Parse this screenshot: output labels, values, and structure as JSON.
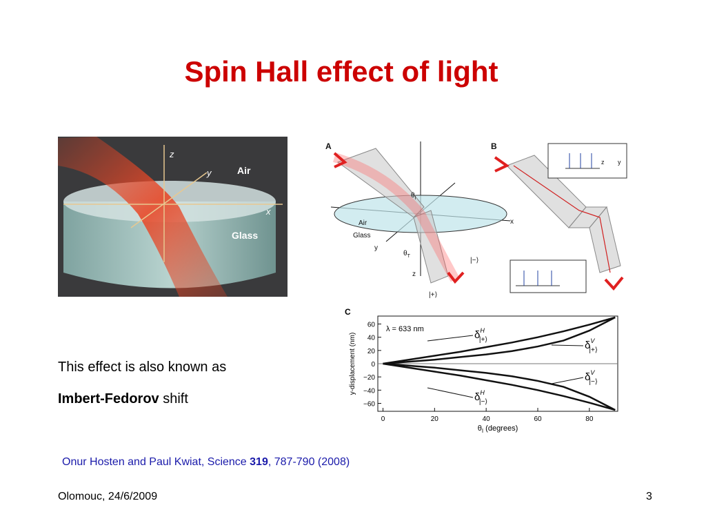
{
  "header": {
    "title": "Spin Hall effect of light"
  },
  "photo": {
    "labels": [
      "z",
      "y",
      "Air",
      "x",
      "Glass"
    ]
  },
  "diagram_a": {
    "panel": "A",
    "labels": [
      "Air",
      "Glass",
      "x",
      "y",
      "z"
    ],
    "theta_i": {
      "base": "θ",
      "sub": "I"
    },
    "theta_t": {
      "base": "θ",
      "sub": "T"
    },
    "states": [
      "|+⟩",
      "|−⟩"
    ]
  },
  "diagram_b": {
    "panel": "B",
    "labels": [
      "z",
      "y"
    ]
  },
  "chart_data": {
    "type": "line",
    "panel": "C",
    "annotation": "λ = 633 nm",
    "ylabel": "y-displacement (nm)",
    "xlabel": {
      "base": "θ",
      "sub": "I",
      "unit": " (degrees)"
    },
    "x": [
      0,
      10,
      20,
      30,
      40,
      50,
      60,
      70,
      80,
      90
    ],
    "series": [
      {
        "name": "δ",
        "superscript": "H",
        "subscript": "|+⟩",
        "color": "#111111",
        "values": [
          0,
          6,
          12,
          18,
          25,
          32,
          40,
          49,
          59,
          70
        ]
      },
      {
        "name": "δ",
        "superscript": "V",
        "subscript": "|+⟩",
        "color": "#111111",
        "values": [
          0,
          3,
          6,
          10,
          14,
          19,
          26,
          35,
          50,
          70
        ]
      },
      {
        "name": "δ",
        "superscript": "V",
        "subscript": "|−⟩",
        "color": "#111111",
        "values": [
          0,
          -3,
          -6,
          -10,
          -14,
          -19,
          -26,
          -35,
          -50,
          -70
        ]
      },
      {
        "name": "δ",
        "superscript": "H",
        "subscript": "|−⟩",
        "color": "#111111",
        "values": [
          0,
          -6,
          -12,
          -18,
          -25,
          -32,
          -40,
          -49,
          -59,
          -70
        ]
      }
    ],
    "xlim": [
      -2,
      91
    ],
    "xticks": [
      0,
      20,
      40,
      60,
      80
    ],
    "ylim": [
      -72,
      72
    ],
    "yticks": [
      {
        "value": -60,
        "label": "−60"
      },
      {
        "value": -40,
        "label": "−40"
      },
      {
        "value": -20,
        "label": "−20"
      },
      0,
      20,
      40,
      60
    ]
  },
  "body": {
    "line1": "This effect is also known as",
    "line2_bold": "Imbert-Fedorov",
    "line2_rest": " shift"
  },
  "citation": {
    "authors": "Onur Hosten and Paul Kwiat, Science ",
    "volume": "319",
    "pages": ", 787-790 (2008)"
  },
  "footer": {
    "place_date": "Olomouc, 24/6/2009",
    "page": "3"
  }
}
